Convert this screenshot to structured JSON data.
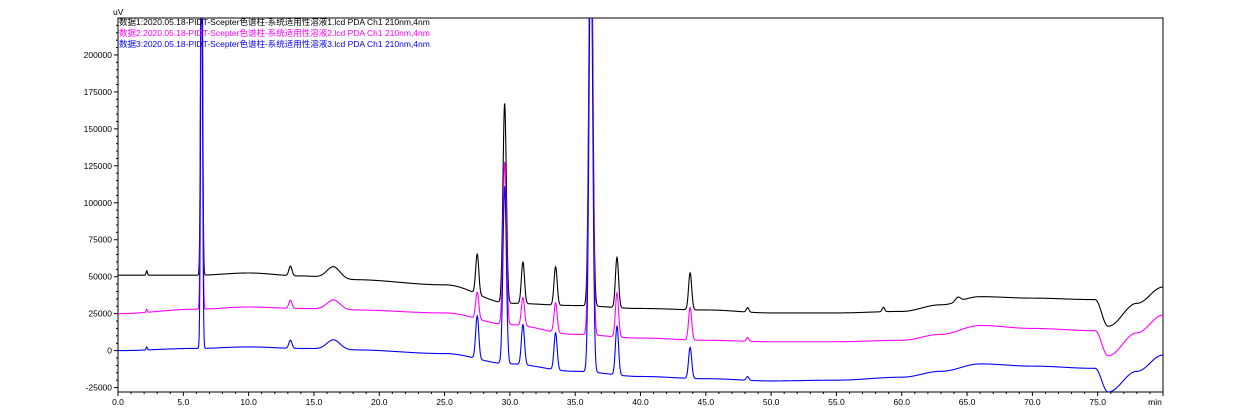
{
  "chart_data": {
    "type": "line",
    "y_unit_label": "uV",
    "x_unit_label": "min",
    "xlim": [
      0,
      80
    ],
    "ylim": [
      -28000,
      225000
    ],
    "x_ticks": [
      0,
      5,
      10,
      15,
      20,
      25,
      30,
      35,
      40,
      45,
      50,
      55,
      60,
      65,
      70,
      75,
      80
    ],
    "x_tick_labels": [
      "0.0",
      "5.0",
      "10.0",
      "15.0",
      "20.0",
      "25.0",
      "30.0",
      "35.0",
      "40.0",
      "45.0",
      "50.0",
      "55.0",
      "60.0",
      "65.0",
      "70.0",
      "75.0",
      "min"
    ],
    "y_ticks": [
      -25000,
      0,
      25000,
      50000,
      75000,
      100000,
      125000,
      150000,
      175000,
      200000
    ],
    "y_tick_labels": [
      "-25000",
      "0",
      "25000",
      "50000",
      "75000",
      "100000",
      "125000",
      "150000",
      "175000",
      "200000"
    ],
    "legend_position": "top-left",
    "series": [
      {
        "name": "数据1:2020.05.18-PIDT-Scepter色谱柱-系统适用性溶液1.lcd PDA Ch1 210nm,4nm",
        "color": "#000000",
        "baseline": [
          [
            0,
            51000
          ],
          [
            6,
            51000
          ],
          [
            10,
            52500
          ],
          [
            14,
            50500
          ],
          [
            18,
            48000
          ],
          [
            25,
            44500
          ],
          [
            30,
            32000
          ],
          [
            35,
            30500
          ],
          [
            40,
            28500
          ],
          [
            45,
            27500
          ],
          [
            50,
            25500
          ],
          [
            55,
            25500
          ],
          [
            60,
            26500
          ],
          [
            63,
            31000
          ],
          [
            66,
            36500
          ],
          [
            70,
            35500
          ],
          [
            74.8,
            34500
          ],
          [
            75.8,
            16500
          ],
          [
            78,
            32000
          ],
          [
            80,
            43000
          ]
        ],
        "peaks": [
          [
            2.2,
            3000,
            0.05
          ],
          [
            6.4,
            300000,
            0.07
          ],
          [
            13.2,
            6500,
            0.12
          ],
          [
            16.5,
            8000,
            0.5
          ],
          [
            27.5,
            27000,
            0.12
          ],
          [
            29.6,
            135000,
            0.13
          ],
          [
            31.0,
            28000,
            0.12
          ],
          [
            33.5,
            26000,
            0.12
          ],
          [
            36.2,
            300000,
            0.14
          ],
          [
            38.2,
            34000,
            0.12
          ],
          [
            43.8,
            25000,
            0.12
          ],
          [
            48.2,
            3000,
            0.1
          ],
          [
            58.6,
            3000,
            0.1
          ],
          [
            64.3,
            3000,
            0.2
          ]
        ]
      },
      {
        "name": "数据2:2020.05.18-PIDT-Scepter色谱柱-系统适用性溶液2.lcd PDA Ch1 210nm,4nm",
        "color": "#ff00ff",
        "baseline": [
          [
            0,
            25000
          ],
          [
            6,
            28000
          ],
          [
            10,
            29500
          ],
          [
            14,
            28500
          ],
          [
            18,
            27500
          ],
          [
            25,
            25500
          ],
          [
            30,
            17500
          ],
          [
            35,
            11000
          ],
          [
            40,
            8500
          ],
          [
            45,
            7000
          ],
          [
            50,
            6000
          ],
          [
            55,
            6000
          ],
          [
            60,
            7000
          ],
          [
            63,
            11000
          ],
          [
            66,
            17000
          ],
          [
            70,
            15000
          ],
          [
            74.8,
            13500
          ],
          [
            75.8,
            -3500
          ],
          [
            78,
            12000
          ],
          [
            80,
            24000
          ]
        ],
        "peaks": [
          [
            2.2,
            2000,
            0.05
          ],
          [
            6.4,
            300000,
            0.07
          ],
          [
            13.2,
            5500,
            0.12
          ],
          [
            16.5,
            6500,
            0.5
          ],
          [
            27.5,
            18000,
            0.12
          ],
          [
            29.6,
            110000,
            0.13
          ],
          [
            31.0,
            19000,
            0.12
          ],
          [
            33.5,
            20000,
            0.12
          ],
          [
            36.2,
            300000,
            0.14
          ],
          [
            38.2,
            30000,
            0.12
          ],
          [
            43.8,
            22000,
            0.12
          ],
          [
            48.2,
            2500,
            0.1
          ]
        ]
      },
      {
        "name": "数据3:2020.05.18-PIDT-Scepter色谱柱-系统适用性溶液3.lcd PDA Ch1 210nm,4nm",
        "color": "#0000ff",
        "baseline": [
          [
            0,
            0
          ],
          [
            6,
            1500
          ],
          [
            10,
            2500
          ],
          [
            14,
            1500
          ],
          [
            18,
            500
          ],
          [
            25,
            -2000
          ],
          [
            30,
            -9000
          ],
          [
            35,
            -14000
          ],
          [
            40,
            -17500
          ],
          [
            45,
            -19000
          ],
          [
            50,
            -20500
          ],
          [
            55,
            -20000
          ],
          [
            60,
            -18000
          ],
          [
            63,
            -14000
          ],
          [
            66,
            -9000
          ],
          [
            70,
            -10500
          ],
          [
            74.8,
            -12000
          ],
          [
            75.8,
            -28000
          ],
          [
            78,
            -14000
          ],
          [
            80,
            -3000
          ]
        ],
        "peaks": [
          [
            2.2,
            2000,
            0.05
          ],
          [
            6.4,
            300000,
            0.07
          ],
          [
            13.2,
            5500,
            0.12
          ],
          [
            16.5,
            6500,
            0.5
          ],
          [
            27.5,
            29000,
            0.12
          ],
          [
            29.6,
            120000,
            0.13
          ],
          [
            31.0,
            27000,
            0.12
          ],
          [
            33.5,
            25000,
            0.12
          ],
          [
            36.2,
            300000,
            0.14
          ],
          [
            38.2,
            33000,
            0.12
          ],
          [
            43.8,
            21000,
            0.12
          ],
          [
            48.2,
            2500,
            0.1
          ]
        ]
      }
    ]
  }
}
